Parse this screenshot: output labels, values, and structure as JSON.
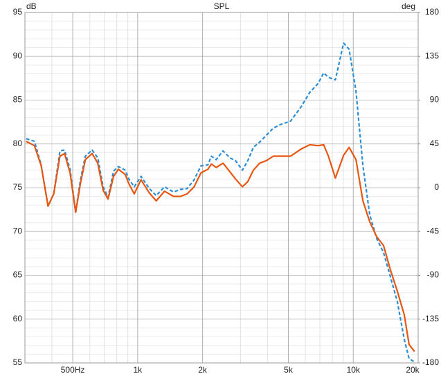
{
  "chart_data": {
    "type": "line",
    "title": "SPL",
    "ylabel": "dB",
    "y2label": "deg",
    "xscale": "log",
    "xlim": [
      300,
      20000
    ],
    "xticks": [
      {
        "value": 500,
        "label": "500Hz"
      },
      {
        "value": 1000,
        "label": "1k"
      },
      {
        "value": 2000,
        "label": "2k"
      },
      {
        "value": 5000,
        "label": "5k"
      },
      {
        "value": 10000,
        "label": "10k"
      },
      {
        "value": 20000,
        "label": "20k"
      }
    ],
    "x_minor_ticks": [
      400,
      600,
      700,
      800,
      900,
      3000,
      4000,
      6000,
      7000,
      8000,
      9000
    ],
    "ylim": [
      55,
      95
    ],
    "yticks": [
      55,
      60,
      65,
      70,
      75,
      80,
      85,
      90,
      95
    ],
    "y_minor_ticks": [
      56,
      57,
      58,
      59,
      61,
      62,
      63,
      64,
      66,
      67,
      68,
      69,
      71,
      72,
      73,
      74,
      76,
      77,
      78,
      79,
      81,
      82,
      83,
      84,
      86,
      87,
      88,
      89,
      91,
      92,
      93,
      94
    ],
    "y2lim": [
      -180,
      180
    ],
    "y2ticks": [
      -180,
      -135,
      -90,
      -45,
      0,
      45,
      90,
      135,
      180
    ],
    "grid": true,
    "x": [
      304,
      332,
      357,
      384,
      408,
      436,
      458,
      486,
      516,
      543,
      572,
      615,
      653,
      692,
      729,
      773,
      814,
      876,
      909,
      964,
      1037,
      1133,
      1220,
      1332,
      1466,
      1578,
      1698,
      1828,
      1967,
      2118,
      2197,
      2313,
      2490,
      2681,
      2843,
      3060,
      3245,
      3442,
      3678,
      3958,
      4260,
      4586,
      5120,
      5718,
      6291,
      6872,
      7290,
      7674,
      8261,
      9022,
      9569,
      10299,
      11083,
      11930,
      12843,
      13822,
      14877,
      16015,
      17234,
      18148,
      19248
    ],
    "series": [
      {
        "color": "#2b8fd6",
        "dashed": true,
        "values": [
          80.6,
          80.3,
          77.6,
          72.9,
          74.3,
          79.2,
          79.3,
          77.1,
          72.2,
          75.9,
          78.6,
          79.3,
          78.4,
          75.1,
          73.9,
          76.9,
          77.4,
          77.0,
          76.0,
          75.1,
          76.3,
          74.9,
          74.1,
          75.1,
          74.5,
          74.8,
          74.9,
          75.9,
          77.5,
          77.6,
          78.6,
          78.2,
          79.2,
          78.4,
          78.1,
          77.0,
          78.1,
          79.6,
          80.2,
          81.0,
          81.8,
          82.2,
          82.6,
          84.2,
          85.9,
          86.9,
          88.1,
          87.6,
          87.3,
          91.5,
          90.8,
          86.0,
          77.5,
          71.9,
          69.2,
          67.6,
          64.8,
          62.0,
          57.7,
          55.5,
          55.1
        ]
      },
      {
        "color": "#e8560f",
        "dashed": false,
        "values": [
          80.3,
          79.8,
          77.5,
          72.9,
          74.3,
          78.6,
          78.9,
          76.7,
          72.2,
          75.5,
          78.2,
          78.9,
          77.8,
          74.7,
          73.7,
          76.3,
          77.1,
          76.5,
          75.5,
          74.3,
          75.9,
          74.4,
          73.5,
          74.6,
          74.0,
          74.0,
          74.3,
          75.1,
          76.7,
          77.1,
          77.7,
          77.3,
          77.8,
          76.8,
          76.0,
          75.1,
          75.7,
          77.0,
          77.8,
          78.1,
          78.6,
          78.6,
          78.6,
          79.4,
          79.9,
          79.8,
          79.9,
          78.6,
          76.1,
          78.7,
          79.6,
          78.2,
          73.5,
          71.1,
          69.4,
          68.4,
          65.6,
          63.2,
          60.5,
          57.1,
          56.3
        ]
      }
    ]
  }
}
